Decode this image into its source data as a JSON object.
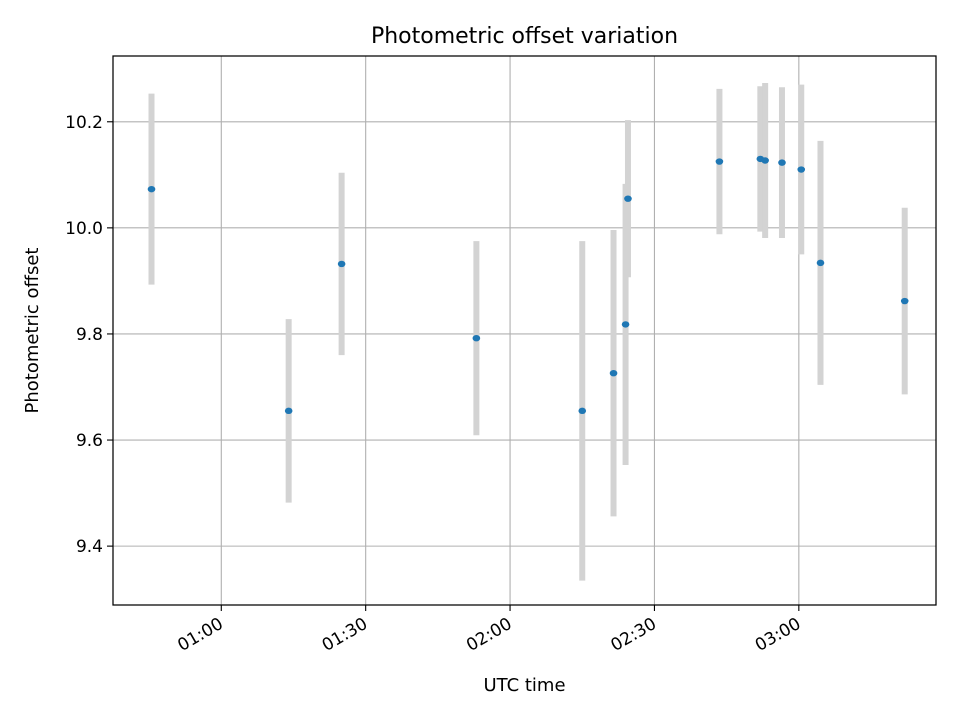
{
  "chart_data": {
    "type": "scatter",
    "title": "Photometric offset variation",
    "xlabel": "UTC time",
    "ylabel": "Photometric offset",
    "x_axis_type": "time",
    "xlim": [
      "00:37:30",
      "03:28:30"
    ],
    "ylim": [
      9.289,
      10.324
    ],
    "grid": true,
    "x_tick_values": [
      "01:00",
      "01:30",
      "02:00",
      "02:30",
      "03:00"
    ],
    "x_tick_labels": [
      "01:00",
      "01:30",
      "02:00",
      "02:30",
      "03:00"
    ],
    "y_ticks": [
      9.4,
      9.6,
      9.8,
      10.0,
      10.2
    ],
    "y_tick_labels": [
      "9.4",
      "9.6",
      "9.8",
      "10.0",
      "10.2"
    ],
    "colors": {
      "marker": "#1f77b4",
      "errorbar": "#d3d3d3",
      "grid": "#b0b0b0"
    },
    "points": [
      {
        "x": "00:45:30",
        "y": 10.073,
        "yerr": 0.18
      },
      {
        "x": "01:14:00",
        "y": 9.655,
        "yerr": 0.173
      },
      {
        "x": "01:25:00",
        "y": 9.932,
        "yerr": 0.172
      },
      {
        "x": "01:53:00",
        "y": 9.792,
        "yerr": 0.183
      },
      {
        "x": "02:15:00",
        "y": 9.655,
        "yerr": 0.32
      },
      {
        "x": "02:21:30",
        "y": 9.726,
        "yerr": 0.27
      },
      {
        "x": "02:24:00",
        "y": 9.818,
        "yerr": 0.265
      },
      {
        "x": "02:24:30",
        "y": 10.055,
        "yerr": 0.148
      },
      {
        "x": "02:43:30",
        "y": 10.125,
        "yerr": 0.137
      },
      {
        "x": "02:52:00",
        "y": 10.13,
        "yerr": 0.137
      },
      {
        "x": "02:53:00",
        "y": 10.127,
        "yerr": 0.146
      },
      {
        "x": "02:56:30",
        "y": 10.123,
        "yerr": 0.142
      },
      {
        "x": "03:00:30",
        "y": 10.11,
        "yerr": 0.16
      },
      {
        "x": "03:04:30",
        "y": 9.934,
        "yerr": 0.23
      },
      {
        "x": "03:22:00",
        "y": 9.862,
        "yerr": 0.176
      }
    ]
  }
}
